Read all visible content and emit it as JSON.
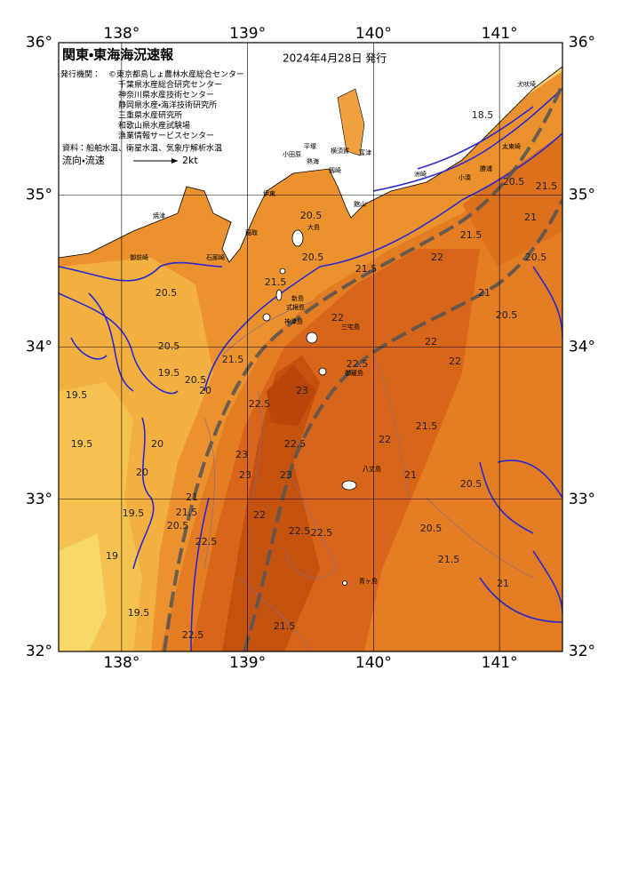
{
  "header": {
    "title": "関東・東海海況速報",
    "date": "2024年4月28日 発行",
    "issuer_label": "発行機関：",
    "issuers": [
      "©東京都島しょ農林水産総合センター",
      "千葉県水産総合研究センター",
      "神奈川県水産技術センター",
      "静岡県水産・海洋技術研究所",
      "三重県水産研究所",
      "和歌山県水産試験場",
      "漁業情報サービスセンター"
    ],
    "source": "資料：船舶水温、衛星水温、気象庁解析水温",
    "flow_label": "流向・流速",
    "flow_scale": "2kt"
  },
  "map": {
    "lon_range": [
      137.5,
      141.5
    ],
    "lat_range": [
      32,
      36
    ],
    "lon_ticks": [
      {
        "value": 138,
        "label": "138°"
      },
      {
        "value": 139,
        "label": "139°"
      },
      {
        "value": 140,
        "label": "140°"
      },
      {
        "value": 141,
        "label": "141°"
      }
    ],
    "lat_ticks": [
      {
        "value": 32,
        "label": "32°"
      },
      {
        "value": 33,
        "label": "33°"
      },
      {
        "value": 34,
        "label": "34°"
      },
      {
        "value": 35,
        "label": "35°"
      },
      {
        "value": 36,
        "label": "36°"
      }
    ],
    "place_names": [
      "犬吠埼",
      "太東崎",
      "勝浦",
      "小湊",
      "洲崎",
      "平塚",
      "横須賀",
      "富津",
      "小田原",
      "熱海",
      "剱崎",
      "館山",
      "伊東",
      "稲取",
      "石廊崎",
      "御前崎",
      "焼津",
      "大島",
      "新島",
      "式根島",
      "神津島",
      "三宅島",
      "御蔵島",
      "八丈島",
      "青ヶ島"
    ],
    "contour_labels": [
      18.5,
      20.5,
      21.5,
      20.5,
      20.5,
      21.5,
      22,
      22,
      22,
      21,
      21.5,
      22,
      21,
      20.5,
      20.5,
      21.5,
      21,
      23,
      22.5,
      23,
      23,
      22.5,
      22.5,
      21.5,
      22.5,
      23,
      22.5,
      22.5,
      22,
      21,
      21.5,
      20.5,
      20,
      20.5,
      21.5,
      19.5,
      19.5,
      19.5,
      20,
      19.5,
      19,
      19.5,
      20.5,
      20.5,
      21.5,
      20.5,
      21.5,
      22,
      22.5,
      20,
      20.5,
      21
    ]
  }
}
